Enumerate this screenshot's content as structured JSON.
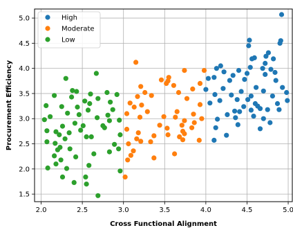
{
  "chart_data": {
    "type": "scatter",
    "title": "",
    "xlabel": "Cross Functional Alignment",
    "ylabel": "Procurement Efficiency",
    "xlim": [
      1.92,
      5.05
    ],
    "ylim": [
      1.35,
      5.18
    ],
    "xticks": [
      2.0,
      2.5,
      3.0,
      3.5,
      4.0,
      4.5,
      5.0
    ],
    "xtick_labels": [
      "2.0",
      "2.5",
      "3.0",
      "3.5",
      "4.0",
      "4.5",
      "5.0"
    ],
    "yticks": [
      1.5,
      2.0,
      2.5,
      3.0,
      3.5,
      4.0,
      4.5,
      5.0
    ],
    "ytick_labels": [
      "1.5",
      "2.0",
      "2.5",
      "3.0",
      "3.5",
      "4.0",
      "4.5",
      "5.0"
    ],
    "grid": true,
    "legend_position": "top-left",
    "series": [
      {
        "name": "High",
        "color": "#1f77b4",
        "points": [
          [
            4.92,
            5.07
          ],
          [
            4.53,
            4.56
          ],
          [
            4.52,
            4.45
          ],
          [
            4.91,
            4.55
          ],
          [
            4.9,
            4.5
          ],
          [
            4.76,
            4.31
          ],
          [
            4.73,
            4.24
          ],
          [
            4.59,
            4.21
          ],
          [
            4.56,
            4.19
          ],
          [
            4.82,
            4.19
          ],
          [
            4.72,
            4.1
          ],
          [
            4.69,
            4.0
          ],
          [
            4.79,
            3.98
          ],
          [
            4.54,
            4.02
          ],
          [
            4.13,
            4.0
          ],
          [
            4.18,
            4.05
          ],
          [
            4.4,
            3.96
          ],
          [
            4.22,
            3.93
          ],
          [
            4.5,
            3.9
          ],
          [
            4.84,
            3.92
          ],
          [
            4.72,
            3.88
          ],
          [
            4.33,
            3.86
          ],
          [
            4.1,
            3.82
          ],
          [
            4.03,
            3.8
          ],
          [
            4.47,
            3.78
          ],
          [
            4.29,
            3.76
          ],
          [
            4.85,
            3.76
          ],
          [
            4.0,
            3.58
          ],
          [
            4.21,
            3.6
          ],
          [
            4.61,
            3.62
          ],
          [
            4.7,
            3.55
          ],
          [
            4.93,
            3.62
          ],
          [
            4.98,
            3.52
          ],
          [
            4.43,
            3.54
          ],
          [
            4.55,
            3.45
          ],
          [
            4.81,
            3.45
          ],
          [
            4.31,
            3.47
          ],
          [
            4.11,
            3.48
          ],
          [
            4.38,
            3.38
          ],
          [
            4.51,
            3.38
          ],
          [
            4.17,
            3.36
          ],
          [
            4.6,
            3.3
          ],
          [
            4.87,
            3.3
          ],
          [
            4.05,
            3.31
          ],
          [
            4.63,
            3.25
          ],
          [
            4.46,
            3.24
          ],
          [
            4.66,
            3.2
          ],
          [
            4.75,
            3.18
          ],
          [
            4.55,
            3.17
          ],
          [
            4.35,
            3.15
          ],
          [
            4.41,
            3.14
          ],
          [
            4.89,
            3.18
          ],
          [
            4.99,
            3.36
          ],
          [
            4.26,
            3.08
          ],
          [
            4.58,
            3.05
          ],
          [
            4.36,
            3.02
          ],
          [
            4.7,
            3.0
          ],
          [
            4.14,
            2.99
          ],
          [
            4.78,
            2.92
          ],
          [
            4.39,
            2.88
          ],
          [
            4.66,
            2.8
          ],
          [
            4.12,
            2.82
          ],
          [
            4.25,
            2.67
          ],
          [
            4.1,
            2.57
          ]
        ]
      },
      {
        "name": "Moderate",
        "color": "#ff7f0e",
        "points": [
          [
            3.15,
            4.12
          ],
          [
            3.74,
            3.96
          ],
          [
            3.98,
            3.96
          ],
          [
            3.55,
            3.82
          ],
          [
            3.54,
            3.75
          ],
          [
            3.46,
            3.77
          ],
          [
            3.52,
            3.7
          ],
          [
            3.61,
            3.66
          ],
          [
            3.93,
            3.7
          ],
          [
            3.21,
            3.64
          ],
          [
            3.84,
            3.59
          ],
          [
            3.26,
            3.52
          ],
          [
            3.67,
            3.52
          ],
          [
            3.34,
            3.46
          ],
          [
            3.17,
            3.44
          ],
          [
            3.77,
            3.4
          ],
          [
            3.08,
            3.31
          ],
          [
            3.22,
            3.27
          ],
          [
            3.13,
            3.23
          ],
          [
            3.93,
            3.28
          ],
          [
            3.29,
            3.14
          ],
          [
            3.04,
            3.1
          ],
          [
            3.65,
            3.14
          ],
          [
            3.49,
            3.04
          ],
          [
            3.85,
            3.09
          ],
          [
            3.2,
            3.03
          ],
          [
            3.63,
            3.03
          ],
          [
            3.95,
            3.0
          ],
          [
            3.74,
            2.96
          ],
          [
            3.86,
            2.92
          ],
          [
            3.44,
            2.87
          ],
          [
            3.71,
            2.87
          ],
          [
            3.04,
            2.79
          ],
          [
            3.53,
            2.81
          ],
          [
            3.83,
            2.82
          ],
          [
            3.72,
            2.75
          ],
          [
            3.18,
            2.72
          ],
          [
            3.74,
            2.7
          ],
          [
            3.54,
            2.68
          ],
          [
            3.37,
            2.66
          ],
          [
            3.68,
            2.64
          ],
          [
            3.16,
            2.6
          ],
          [
            3.72,
            2.58
          ],
          [
            3.92,
            2.57
          ],
          [
            3.21,
            2.55
          ],
          [
            3.33,
            2.54
          ],
          [
            3.06,
            2.5
          ],
          [
            3.12,
            2.36
          ],
          [
            3.62,
            2.3
          ],
          [
            3.37,
            2.22
          ],
          [
            3.09,
            2.27
          ],
          [
            3.05,
            2.18
          ],
          [
            3.02,
            1.84
          ]
        ]
      },
      {
        "name": "Low",
        "color": "#2ca02c",
        "points": [
          [
            2.67,
            3.9
          ],
          [
            2.3,
            3.8
          ],
          [
            2.38,
            3.56
          ],
          [
            2.43,
            3.54
          ],
          [
            2.37,
            3.43
          ],
          [
            2.16,
            3.46
          ],
          [
            2.8,
            3.52
          ],
          [
            2.6,
            3.49
          ],
          [
            2.92,
            3.48
          ],
          [
            2.69,
            3.4
          ],
          [
            2.53,
            3.35
          ],
          [
            2.84,
            3.33
          ],
          [
            2.59,
            3.3
          ],
          [
            2.06,
            3.26
          ],
          [
            2.25,
            3.24
          ],
          [
            2.44,
            3.23
          ],
          [
            2.57,
            3.17
          ],
          [
            2.87,
            3.18
          ],
          [
            2.32,
            3.11
          ],
          [
            2.46,
            3.08
          ],
          [
            2.11,
            3.04
          ],
          [
            2.81,
            3.07
          ],
          [
            2.68,
            3.02
          ],
          [
            2.04,
            2.98
          ],
          [
            2.83,
            2.96
          ],
          [
            2.95,
            2.97
          ],
          [
            2.41,
            2.91
          ],
          [
            2.51,
            2.86
          ],
          [
            2.75,
            2.86
          ],
          [
            2.26,
            2.85
          ],
          [
            2.77,
            2.82
          ],
          [
            2.48,
            2.77
          ],
          [
            2.07,
            2.76
          ],
          [
            2.18,
            2.74
          ],
          [
            2.34,
            2.72
          ],
          [
            2.22,
            2.68
          ],
          [
            2.55,
            2.64
          ],
          [
            2.61,
            2.64
          ],
          [
            2.96,
            2.68
          ],
          [
            2.29,
            2.6
          ],
          [
            2.07,
            2.54
          ],
          [
            2.17,
            2.51
          ],
          [
            2.89,
            2.49
          ],
          [
            2.23,
            2.43
          ],
          [
            2.35,
            2.4
          ],
          [
            2.94,
            2.4
          ],
          [
            2.2,
            2.38
          ],
          [
            2.64,
            2.3
          ],
          [
            2.83,
            2.34
          ],
          [
            2.16,
            2.26
          ],
          [
            2.42,
            2.24
          ],
          [
            2.24,
            2.18
          ],
          [
            2.18,
            2.1
          ],
          [
            2.58,
            2.07
          ],
          [
            2.08,
            2.02
          ],
          [
            2.31,
            2.01
          ],
          [
            2.96,
            1.96
          ],
          [
            2.26,
            1.84
          ],
          [
            2.54,
            1.84
          ],
          [
            2.4,
            1.73
          ],
          [
            2.55,
            1.7
          ],
          [
            2.69,
            1.47
          ]
        ]
      }
    ]
  }
}
